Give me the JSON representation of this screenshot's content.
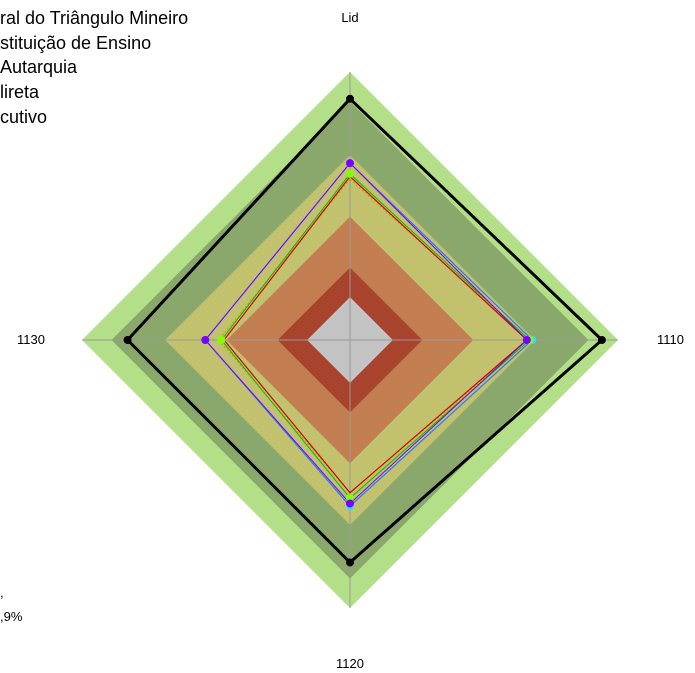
{
  "legend_lines": [
    "ral do Triângulo Mineiro",
    "stituição de Ensino",
    " Autarquia",
    "lireta",
    "cutivo"
  ],
  "side_labels": [
    ",",
    ",9%"
  ],
  "chart_data": {
    "type": "radar",
    "axes": [
      "Lid",
      "1110",
      "1120",
      "1130"
    ],
    "rmax": 1.0,
    "bands": [
      {
        "value": 1.0,
        "color": "#b3df88"
      },
      {
        "value": 0.89,
        "color": "#8aa86c"
      },
      {
        "value": 0.69,
        "color": "#c2c26e"
      },
      {
        "value": 0.46,
        "color": "#c27d50"
      },
      {
        "value": 0.27,
        "color": "#a8432d"
      },
      {
        "value": 0.16,
        "color": "#c3c3c3"
      }
    ],
    "series": [
      {
        "values": [
          0.9,
          0.94,
          0.83,
          0.83
        ],
        "color": "#000000",
        "stroke": 3,
        "dash": "",
        "marker": "#000000",
        "marker_r": 4
      },
      {
        "values": [
          0.66,
          0.68,
          0.62,
          0.54
        ],
        "color": "#2979ff",
        "stroke": 1.2,
        "dash": "",
        "marker": "#33d9ff",
        "marker_r": 4
      },
      {
        "values": [
          0.6,
          0.67,
          0.57,
          0.49
        ],
        "color": "#c8a000",
        "stroke": 1.2,
        "dash": "2,2",
        "marker": "",
        "marker_r": 0
      },
      {
        "values": [
          0.61,
          0.66,
          0.57,
          0.47
        ],
        "color": "#d40000",
        "stroke": 1.2,
        "dash": "",
        "marker": "",
        "marker_r": 0
      },
      {
        "values": [
          0.62,
          0.67,
          0.59,
          0.48
        ],
        "color": "#00c000",
        "stroke": 1,
        "dash": "",
        "marker": "#7fff00",
        "marker_r": 4
      },
      {
        "values": [
          0.66,
          0.66,
          0.61,
          0.54
        ],
        "color": "#7a00ff",
        "stroke": 1,
        "dash": "",
        "marker": "#7a00ff",
        "marker_r": 4
      }
    ]
  }
}
